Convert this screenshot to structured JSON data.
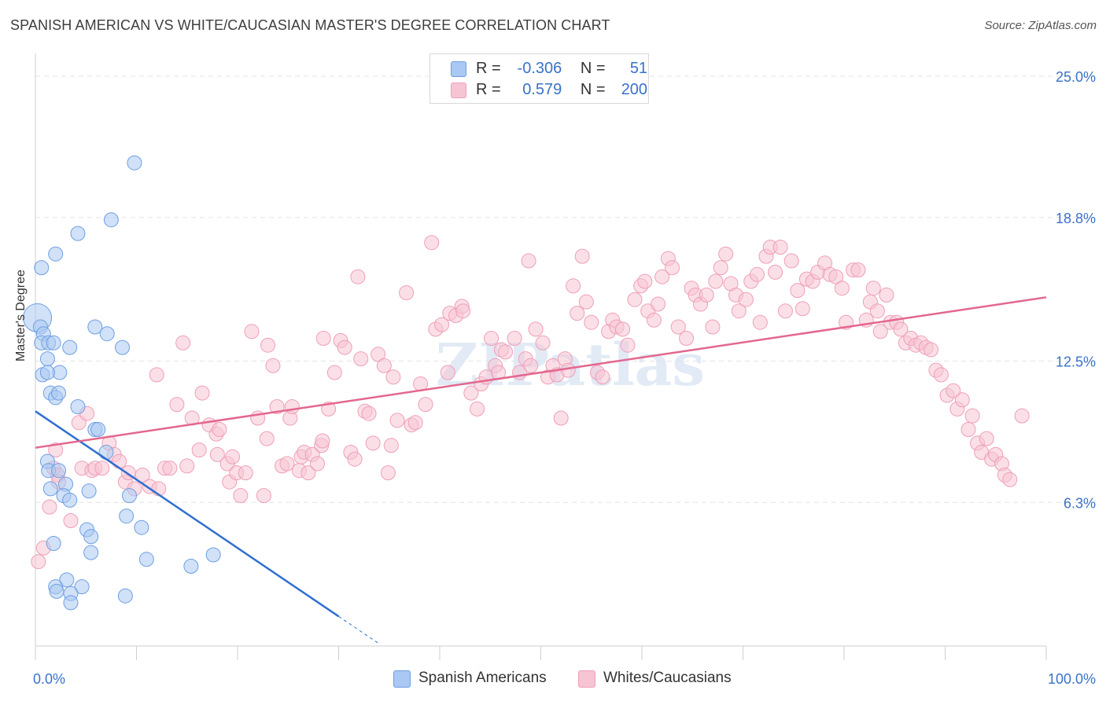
{
  "title": "SPANISH AMERICAN VS WHITE/CAUCASIAN MASTER'S DEGREE CORRELATION CHART",
  "source": "Source: ZipAtlas.com",
  "watermark": "ZIPatlas",
  "legend_stats": [
    {
      "r_label": "R =",
      "r_value": "-0.306",
      "n_label": "N =",
      "n_value": "51"
    },
    {
      "r_label": "R =",
      "r_value": "0.579",
      "n_label": "N =",
      "n_value": "200"
    }
  ],
  "chart_data": {
    "type": "scatter",
    "title": "SPANISH AMERICAN VS WHITE/CAUCASIAN MASTER'S DEGREE CORRELATION CHART",
    "xlabel": "",
    "ylabel": "Master's Degree",
    "xlim": [
      0,
      100
    ],
    "ylim": [
      0,
      25
    ],
    "x_tick_labels": [
      "0.0%",
      "100.0%"
    ],
    "y_ticks": [
      6.3,
      12.5,
      18.8,
      25.0
    ],
    "y_tick_labels": [
      "6.3%",
      "12.5%",
      "18.8%",
      "25.0%"
    ],
    "grid": true,
    "legend_position": "top-center",
    "series": [
      {
        "name": "Spanish Americans",
        "color": "#6f9fe0",
        "fill": "#a9c8f3",
        "line_color": "#2f6fd0",
        "trend": {
          "x": [
            0,
            30
          ],
          "y": [
            10.3,
            1.3
          ]
        },
        "trend_dashed": {
          "x": [
            30,
            34
          ],
          "y": [
            1.3,
            0.1
          ]
        },
        "points": [
          [
            0.2,
            14.4
          ],
          [
            0.5,
            14.0
          ],
          [
            0.6,
            16.6
          ],
          [
            0.8,
            13.7
          ],
          [
            0.6,
            13.3
          ],
          [
            1.3,
            13.3
          ],
          [
            1.8,
            13.3
          ],
          [
            1.2,
            12.6
          ],
          [
            2.4,
            12.0
          ],
          [
            0.7,
            11.9
          ],
          [
            1.2,
            12.0
          ],
          [
            1.5,
            11.1
          ],
          [
            2.0,
            10.9
          ],
          [
            2.3,
            11.1
          ],
          [
            2.0,
            17.2
          ],
          [
            4.2,
            18.1
          ],
          [
            7.5,
            18.7
          ],
          [
            9.8,
            21.2
          ],
          [
            5.9,
            14.0
          ],
          [
            7.1,
            13.7
          ],
          [
            8.6,
            13.1
          ],
          [
            3.4,
            13.1
          ],
          [
            4.2,
            10.5
          ],
          [
            5.9,
            9.5
          ],
          [
            6.2,
            9.5
          ],
          [
            1.2,
            8.1
          ],
          [
            1.3,
            7.7
          ],
          [
            2.3,
            7.7
          ],
          [
            7.0,
            8.5
          ],
          [
            3.0,
            7.1
          ],
          [
            1.5,
            6.9
          ],
          [
            2.8,
            6.6
          ],
          [
            3.4,
            6.4
          ],
          [
            5.3,
            6.8
          ],
          [
            9.3,
            6.6
          ],
          [
            9.0,
            5.7
          ],
          [
            10.5,
            5.2
          ],
          [
            5.1,
            5.1
          ],
          [
            5.5,
            4.8
          ],
          [
            1.8,
            4.5
          ],
          [
            5.5,
            4.1
          ],
          [
            11.0,
            3.8
          ],
          [
            15.4,
            3.5
          ],
          [
            17.6,
            4.0
          ],
          [
            3.1,
            2.9
          ],
          [
            2.0,
            2.6
          ],
          [
            4.6,
            2.6
          ],
          [
            2.1,
            2.4
          ],
          [
            3.5,
            2.3
          ],
          [
            8.9,
            2.2
          ],
          [
            3.5,
            1.9
          ]
        ]
      },
      {
        "name": "Whites/Caucasians",
        "color": "#ee9fb8",
        "fill": "#f7c4d4",
        "line_color": "#e3678f",
        "trend": {
          "x": [
            0,
            100
          ],
          "y": [
            8.7,
            15.3
          ]
        },
        "points": [
          [
            0.3,
            3.7
          ],
          [
            0.8,
            4.3
          ],
          [
            1.4,
            6.1
          ],
          [
            2.0,
            8.6
          ],
          [
            1.8,
            7.8
          ],
          [
            2.2,
            7.5
          ],
          [
            2.3,
            7.2
          ],
          [
            3.5,
            5.5
          ],
          [
            4.3,
            9.8
          ],
          [
            4.6,
            7.8
          ],
          [
            5.1,
            10.2
          ],
          [
            5.6,
            7.7
          ],
          [
            5.9,
            7.8
          ],
          [
            6.6,
            7.8
          ],
          [
            7.3,
            8.9
          ],
          [
            7.8,
            8.4
          ],
          [
            8.3,
            8.1
          ],
          [
            8.9,
            7.2
          ],
          [
            9.2,
            7.6
          ],
          [
            9.8,
            6.9
          ],
          [
            10.6,
            7.5
          ],
          [
            11.3,
            7.0
          ],
          [
            12.0,
            11.9
          ],
          [
            12.2,
            6.9
          ],
          [
            12.8,
            7.8
          ],
          [
            13.3,
            7.8
          ],
          [
            14.0,
            10.6
          ],
          [
            14.6,
            13.3
          ],
          [
            15.0,
            7.9
          ],
          [
            15.5,
            10.0
          ],
          [
            16.2,
            8.6
          ],
          [
            16.5,
            11.1
          ],
          [
            17.2,
            9.7
          ],
          [
            17.9,
            9.3
          ],
          [
            18.0,
            8.4
          ],
          [
            18.2,
            9.5
          ],
          [
            19.0,
            8.0
          ],
          [
            19.2,
            7.2
          ],
          [
            19.5,
            8.3
          ],
          [
            19.9,
            7.6
          ],
          [
            20.3,
            6.6
          ],
          [
            20.8,
            7.6
          ],
          [
            21.4,
            13.8
          ],
          [
            22.0,
            10.0
          ],
          [
            22.6,
            6.6
          ],
          [
            22.9,
            9.1
          ],
          [
            23.0,
            13.2
          ],
          [
            23.5,
            12.3
          ],
          [
            23.9,
            10.5
          ],
          [
            24.4,
            7.9
          ],
          [
            24.9,
            8.0
          ],
          [
            25.2,
            10.0
          ],
          [
            25.4,
            10.5
          ],
          [
            26.1,
            7.7
          ],
          [
            26.3,
            8.3
          ],
          [
            26.6,
            8.5
          ],
          [
            27.0,
            7.6
          ],
          [
            27.4,
            8.4
          ],
          [
            27.9,
            8.0
          ],
          [
            28.3,
            8.8
          ],
          [
            28.4,
            9.0
          ],
          [
            28.5,
            13.5
          ],
          [
            29.0,
            10.4
          ],
          [
            29.6,
            12.0
          ],
          [
            30.2,
            13.4
          ],
          [
            30.6,
            13.1
          ],
          [
            31.2,
            8.5
          ],
          [
            31.6,
            8.2
          ],
          [
            31.9,
            16.2
          ],
          [
            32.2,
            12.6
          ],
          [
            32.6,
            10.3
          ],
          [
            33.0,
            10.2
          ],
          [
            33.4,
            8.9
          ],
          [
            33.9,
            12.8
          ],
          [
            34.5,
            12.3
          ],
          [
            34.9,
            7.6
          ],
          [
            35.2,
            8.8
          ],
          [
            35.4,
            11.8
          ],
          [
            35.8,
            9.9
          ],
          [
            36.7,
            15.5
          ],
          [
            37.2,
            9.7
          ],
          [
            37.6,
            9.8
          ],
          [
            38.1,
            11.5
          ],
          [
            38.6,
            10.6
          ],
          [
            39.2,
            17.7
          ],
          [
            39.6,
            13.9
          ],
          [
            40.2,
            14.1
          ],
          [
            40.8,
            12.0
          ],
          [
            41.0,
            14.6
          ],
          [
            41.6,
            14.5
          ],
          [
            42.2,
            14.9
          ],
          [
            42.3,
            14.7
          ],
          [
            43.1,
            11.1
          ],
          [
            43.7,
            10.4
          ],
          [
            44.1,
            11.5
          ],
          [
            44.6,
            11.8
          ],
          [
            45.1,
            13.5
          ],
          [
            45.5,
            12.3
          ],
          [
            45.8,
            12.0
          ],
          [
            46.1,
            13.0
          ],
          [
            46.5,
            12.9
          ],
          [
            47.4,
            13.5
          ],
          [
            47.9,
            12.0
          ],
          [
            48.5,
            12.6
          ],
          [
            48.8,
            16.9
          ],
          [
            49.0,
            12.3
          ],
          [
            49.5,
            13.9
          ],
          [
            50.2,
            13.3
          ],
          [
            50.7,
            11.8
          ],
          [
            51.2,
            12.3
          ],
          [
            51.6,
            11.9
          ],
          [
            52.0,
            10.0
          ],
          [
            52.4,
            12.6
          ],
          [
            52.7,
            12.1
          ],
          [
            53.2,
            15.8
          ],
          [
            53.6,
            14.6
          ],
          [
            54.1,
            17.1
          ],
          [
            54.5,
            15.1
          ],
          [
            55.0,
            14.2
          ],
          [
            55.6,
            12.0
          ],
          [
            56.1,
            11.8
          ],
          [
            56.7,
            13.8
          ],
          [
            57.1,
            14.3
          ],
          [
            57.5,
            14.0
          ],
          [
            58.1,
            13.9
          ],
          [
            58.6,
            13.2
          ],
          [
            59.3,
            15.2
          ],
          [
            59.9,
            15.8
          ],
          [
            60.3,
            16.0
          ],
          [
            60.6,
            14.7
          ],
          [
            61.2,
            14.3
          ],
          [
            61.6,
            15.0
          ],
          [
            62.0,
            16.2
          ],
          [
            62.6,
            17.0
          ],
          [
            63.0,
            16.6
          ],
          [
            63.6,
            14.0
          ],
          [
            64.4,
            13.5
          ],
          [
            64.9,
            15.7
          ],
          [
            65.3,
            15.4
          ],
          [
            65.8,
            15.0
          ],
          [
            66.4,
            15.4
          ],
          [
            67.0,
            14.0
          ],
          [
            67.3,
            16.0
          ],
          [
            67.8,
            16.6
          ],
          [
            68.3,
            17.2
          ],
          [
            68.8,
            15.9
          ],
          [
            69.3,
            15.4
          ],
          [
            69.6,
            14.7
          ],
          [
            70.3,
            15.2
          ],
          [
            70.8,
            16.0
          ],
          [
            71.4,
            16.3
          ],
          [
            71.7,
            14.2
          ],
          [
            72.3,
            17.1
          ],
          [
            72.7,
            17.5
          ],
          [
            73.2,
            16.4
          ],
          [
            73.7,
            17.5
          ],
          [
            74.2,
            14.7
          ],
          [
            74.8,
            16.9
          ],
          [
            75.4,
            15.6
          ],
          [
            75.9,
            14.8
          ],
          [
            76.3,
            16.1
          ],
          [
            76.9,
            16.0
          ],
          [
            77.4,
            16.4
          ],
          [
            78.1,
            16.8
          ],
          [
            78.6,
            16.3
          ],
          [
            79.2,
            16.2
          ],
          [
            79.8,
            15.7
          ],
          [
            80.2,
            14.2
          ],
          [
            80.9,
            16.5
          ],
          [
            81.4,
            16.5
          ],
          [
            82.2,
            14.3
          ],
          [
            82.6,
            15.1
          ],
          [
            82.9,
            15.7
          ],
          [
            83.3,
            14.7
          ],
          [
            83.6,
            13.8
          ],
          [
            84.2,
            15.4
          ],
          [
            84.6,
            14.2
          ],
          [
            85.2,
            14.2
          ],
          [
            85.6,
            13.9
          ],
          [
            86.1,
            13.3
          ],
          [
            86.6,
            13.5
          ],
          [
            87.1,
            13.2
          ],
          [
            87.6,
            13.3
          ],
          [
            88.1,
            13.1
          ],
          [
            88.6,
            13.0
          ],
          [
            89.1,
            12.1
          ],
          [
            89.6,
            11.9
          ],
          [
            90.2,
            11.0
          ],
          [
            90.8,
            11.2
          ],
          [
            91.2,
            10.4
          ],
          [
            91.7,
            10.8
          ],
          [
            92.3,
            9.5
          ],
          [
            92.7,
            10.1
          ],
          [
            93.2,
            8.9
          ],
          [
            93.6,
            8.5
          ],
          [
            94.1,
            9.1
          ],
          [
            94.6,
            8.2
          ],
          [
            95.0,
            8.4
          ],
          [
            95.6,
            8.0
          ],
          [
            95.9,
            7.5
          ],
          [
            96.4,
            7.3
          ],
          [
            97.6,
            10.1
          ]
        ]
      }
    ]
  }
}
